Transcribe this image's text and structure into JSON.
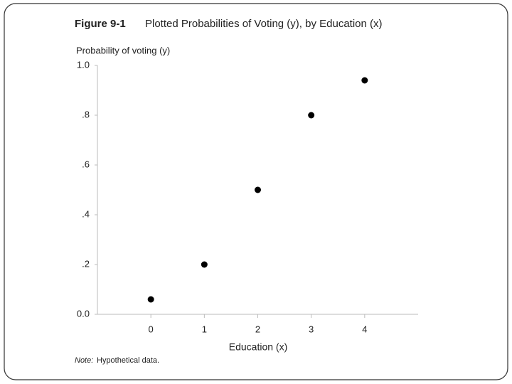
{
  "chart_data": {
    "type": "scatter",
    "title_label": "Figure 9-1",
    "title": "Plotted Probabilities of Voting (y), by Education (x)",
    "y_label": "Probability of voting (y)",
    "x_label": "Education (x)",
    "note_label": "Note:",
    "note": "Hypothetical data.",
    "x": [
      0,
      1,
      2,
      3,
      4
    ],
    "values": [
      0.06,
      0.2,
      0.5,
      0.8,
      0.94
    ],
    "color": "#000000",
    "xlim": [
      -1,
      5
    ],
    "xticks": [
      0,
      1,
      2,
      3,
      4
    ],
    "ylim": [
      0,
      1
    ],
    "yticks": [
      {
        "value": 0,
        "label": "0.0"
      },
      {
        "value": 0.2,
        "label": ".2"
      },
      {
        "value": 0.4,
        "label": ".4"
      },
      {
        "value": 0.6,
        "label": ".6"
      },
      {
        "value": 0.8,
        "label": ".8"
      },
      {
        "value": 1,
        "label": "1.0"
      }
    ]
  }
}
